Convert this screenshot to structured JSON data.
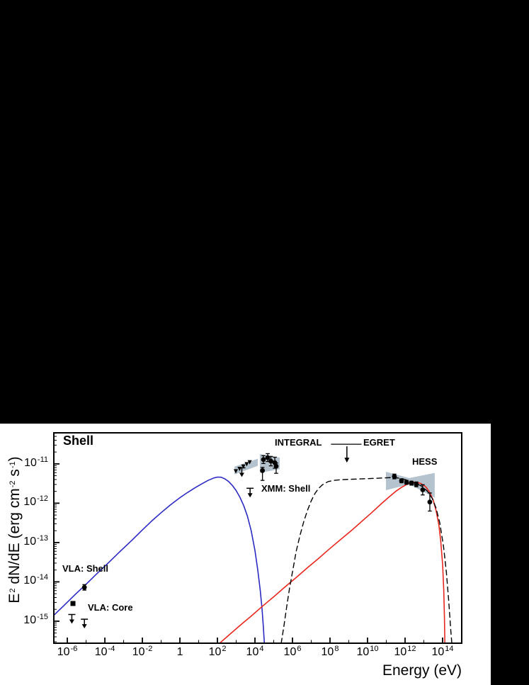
{
  "page": {
    "background": "#000000",
    "panel_background": "#ffffff"
  },
  "chart_data": {
    "type": "line",
    "title": "Shell",
    "xlabel": "Energy (eV)",
    "ylabel": "E2 dN/dE (erg cm-2 s-1)",
    "ylabel_parts": [
      {
        "t": "E"
      },
      {
        "t": "2",
        "sup": true
      },
      {
        "t": " dN/dE (erg cm"
      },
      {
        "t": "-2",
        "sup": true
      },
      {
        "t": " s"
      },
      {
        "t": "-1",
        "sup": true
      },
      {
        "t": ")"
      }
    ],
    "labels": {
      "integral": "INTEGRAL",
      "egret": "EGRET",
      "hess": "HESS",
      "xmm_shell": "XMM: Shell",
      "vla_shell": "VLA: Shell",
      "vla_core": "VLA: Core"
    },
    "x_axis": {
      "scale": "log",
      "unit": "eV",
      "range_exp": [
        -6.72,
        15.02
      ],
      "labeled_exps": [
        -6,
        -4,
        -2,
        0,
        2,
        4,
        6,
        8,
        10,
        12,
        14
      ]
    },
    "y_axis": {
      "scale": "log",
      "unit": "erg cm-2 s-1",
      "range_exp": [
        -15.56,
        -10.21
      ],
      "labeled_exps": [
        -11,
        -12,
        -13,
        -14,
        -15
      ]
    },
    "colors": {
      "synchrotron": "#2b2bc4",
      "inverse_compton": "#e8281e",
      "hadronic": "#000000",
      "band": "#b4c3cd",
      "marker": "#000000",
      "frame": "#000000"
    },
    "series": [
      {
        "name": "synchrotron-model",
        "style": "solid",
        "color_key": "synchrotron",
        "points": [
          [
            -6.72,
            -14.85
          ],
          [
            -6.2,
            -14.61
          ],
          [
            -5.6,
            -14.33
          ],
          [
            -5.0,
            -14.06
          ],
          [
            -4.4,
            -13.78
          ],
          [
            -3.8,
            -13.51
          ],
          [
            -3.2,
            -13.23
          ],
          [
            -2.6,
            -12.96
          ],
          [
            -2.0,
            -12.68
          ],
          [
            -1.5,
            -12.45
          ],
          [
            -1.0,
            -12.24
          ],
          [
            -0.5,
            -12.04
          ],
          [
            0.0,
            -11.86
          ],
          [
            0.4,
            -11.73
          ],
          [
            0.8,
            -11.61
          ],
          [
            1.2,
            -11.5
          ],
          [
            1.5,
            -11.42
          ],
          [
            1.8,
            -11.36
          ],
          [
            2.0,
            -11.335
          ],
          [
            2.2,
            -11.34
          ],
          [
            2.4,
            -11.38
          ],
          [
            2.6,
            -11.45
          ],
          [
            2.8,
            -11.55
          ],
          [
            3.0,
            -11.68
          ],
          [
            3.2,
            -11.85
          ],
          [
            3.4,
            -12.06
          ],
          [
            3.6,
            -12.33
          ],
          [
            3.8,
            -12.7
          ],
          [
            4.0,
            -13.2
          ],
          [
            4.15,
            -13.7
          ],
          [
            4.28,
            -14.2
          ],
          [
            4.38,
            -14.7
          ],
          [
            4.45,
            -15.15
          ],
          [
            4.5,
            -15.56
          ]
        ]
      },
      {
        "name": "inverse-compton-model",
        "style": "solid",
        "color_key": "inverse_compton",
        "points": [
          [
            2.12,
            -15.56
          ],
          [
            2.6,
            -15.36
          ],
          [
            3.2,
            -15.11
          ],
          [
            3.8,
            -14.87
          ],
          [
            4.4,
            -14.62
          ],
          [
            5.0,
            -14.38
          ],
          [
            5.6,
            -14.13
          ],
          [
            6.2,
            -13.89
          ],
          [
            6.8,
            -13.64
          ],
          [
            7.4,
            -13.4
          ],
          [
            8.0,
            -13.15
          ],
          [
            8.6,
            -12.91
          ],
          [
            9.2,
            -12.67
          ],
          [
            9.7,
            -12.46
          ],
          [
            10.2,
            -12.25
          ],
          [
            10.7,
            -12.03
          ],
          [
            11.1,
            -11.86
          ],
          [
            11.5,
            -11.7
          ],
          [
            11.8,
            -11.6
          ],
          [
            12.1,
            -11.52
          ],
          [
            12.35,
            -11.475
          ],
          [
            12.6,
            -11.465
          ],
          [
            12.85,
            -11.5
          ],
          [
            13.1,
            -11.58
          ],
          [
            13.3,
            -11.71
          ],
          [
            13.5,
            -11.92
          ],
          [
            13.65,
            -12.18
          ],
          [
            13.8,
            -12.55
          ],
          [
            13.9,
            -12.95
          ],
          [
            14.0,
            -13.55
          ],
          [
            14.06,
            -14.2
          ],
          [
            14.1,
            -14.9
          ],
          [
            14.12,
            -15.56
          ]
        ]
      },
      {
        "name": "hadronic-model",
        "style": "dashed",
        "color_key": "hadronic",
        "points": [
          [
            5.4,
            -15.56
          ],
          [
            5.55,
            -15.1
          ],
          [
            5.7,
            -14.6
          ],
          [
            5.85,
            -14.15
          ],
          [
            6.0,
            -13.75
          ],
          [
            6.2,
            -13.22
          ],
          [
            6.4,
            -12.82
          ],
          [
            6.6,
            -12.47
          ],
          [
            6.8,
            -12.18
          ],
          [
            7.0,
            -11.94
          ],
          [
            7.2,
            -11.75
          ],
          [
            7.4,
            -11.62
          ],
          [
            7.6,
            -11.53
          ],
          [
            7.9,
            -11.45
          ],
          [
            8.2,
            -11.42
          ],
          [
            8.6,
            -11.4
          ],
          [
            9.2,
            -11.39
          ],
          [
            10.0,
            -11.375
          ],
          [
            10.8,
            -11.36
          ],
          [
            11.4,
            -11.345
          ],
          [
            11.8,
            -11.37
          ],
          [
            12.2,
            -11.43
          ],
          [
            12.6,
            -11.5
          ],
          [
            12.9,
            -11.57
          ],
          [
            13.2,
            -11.7
          ],
          [
            13.45,
            -11.88
          ],
          [
            13.65,
            -12.12
          ],
          [
            13.85,
            -12.5
          ],
          [
            14.05,
            -13.1
          ],
          [
            14.2,
            -13.75
          ],
          [
            14.33,
            -14.5
          ],
          [
            14.43,
            -15.2
          ],
          [
            14.49,
            -15.56
          ]
        ]
      }
    ],
    "bands": [
      {
        "name": "xmm-band",
        "points": [
          [
            2.91,
            -11.07
          ],
          [
            4.15,
            -10.87
          ],
          [
            4.15,
            -11.05
          ],
          [
            2.91,
            -11.27
          ]
        ]
      },
      {
        "name": "integral-band",
        "points": [
          [
            4.26,
            -10.75
          ],
          [
            5.32,
            -10.84
          ],
          [
            5.32,
            -11.13
          ],
          [
            4.26,
            -11.23
          ]
        ]
      },
      {
        "name": "hess-band",
        "points": [
          [
            10.98,
            -11.2
          ],
          [
            12.23,
            -11.36
          ],
          [
            13.58,
            -11.23
          ],
          [
            13.58,
            -11.86
          ],
          [
            12.23,
            -11.52
          ],
          [
            10.98,
            -11.67
          ]
        ]
      }
    ],
    "point_groups": [
      {
        "name": "vla-shell-point",
        "marker": "circle",
        "points": [
          {
            "e": -5.09,
            "f": -14.14,
            "err": 0.07
          }
        ]
      },
      {
        "name": "vla-core-point",
        "marker": "square",
        "points": [
          {
            "e": -5.7,
            "f": -14.55
          }
        ]
      },
      {
        "name": "vla-core-upper-limits",
        "marker": "upper-limit",
        "points": [
          {
            "e": -5.76,
            "f": -14.83
          },
          {
            "e": -5.09,
            "f": -14.95
          }
        ]
      },
      {
        "name": "xmm-spectrum-points",
        "marker": "triangle",
        "points": [
          {
            "e": 2.98,
            "f": -11.18
          },
          {
            "e": 3.18,
            "f": -11.12
          },
          {
            "e": 3.38,
            "f": -11.06
          },
          {
            "e": 3.56,
            "f": -11.0
          },
          {
            "e": 3.72,
            "f": -10.95
          }
        ]
      },
      {
        "name": "xmm-band-upper-limit",
        "marker": "upper-limit",
        "points": [
          {
            "e": 3.3,
            "f": -11.1
          }
        ]
      },
      {
        "name": "xmm-shell-upper-limit",
        "marker": "upper-limit",
        "points": [
          {
            "e": 3.74,
            "f": -11.62
          }
        ]
      },
      {
        "name": "integral-points",
        "marker": "circle",
        "points": [
          {
            "e": 4.45,
            "f": -10.89,
            "err": 0.1
          },
          {
            "e": 4.68,
            "f": -10.84,
            "err": 0.1
          },
          {
            "e": 4.85,
            "f": -10.93,
            "err": 0.12
          },
          {
            "e": 5.06,
            "f": -10.97,
            "err": 0.14
          },
          {
            "e": 4.4,
            "f": -11.17,
            "err_lo": 0.25,
            "err_hi": 0.08
          },
          {
            "e": 5.13,
            "f": -11.06,
            "err_lo": 0.18,
            "err_hi": 0.08
          }
        ]
      },
      {
        "name": "hess-points",
        "marker": "circle",
        "points": [
          {
            "e": 11.43,
            "f": -11.32,
            "err": 0.06
          },
          {
            "e": 11.81,
            "f": -11.43,
            "err": 0.05
          },
          {
            "e": 12.08,
            "f": -11.47,
            "err": 0.05
          },
          {
            "e": 12.34,
            "f": -11.49,
            "err": 0.05
          },
          {
            "e": 12.6,
            "f": -11.52,
            "err": 0.06
          },
          {
            "e": 12.94,
            "f": -11.66,
            "err": 0.13
          },
          {
            "e": 13.32,
            "f": -11.97,
            "err": 0.23
          }
        ]
      },
      {
        "name": "egret-upper-limit",
        "marker": "range-upper-limit",
        "points": [
          {
            "e_min": 8.05,
            "e_max": 9.68,
            "f": -10.5,
            "arrow_e": 8.9
          }
        ]
      }
    ]
  }
}
